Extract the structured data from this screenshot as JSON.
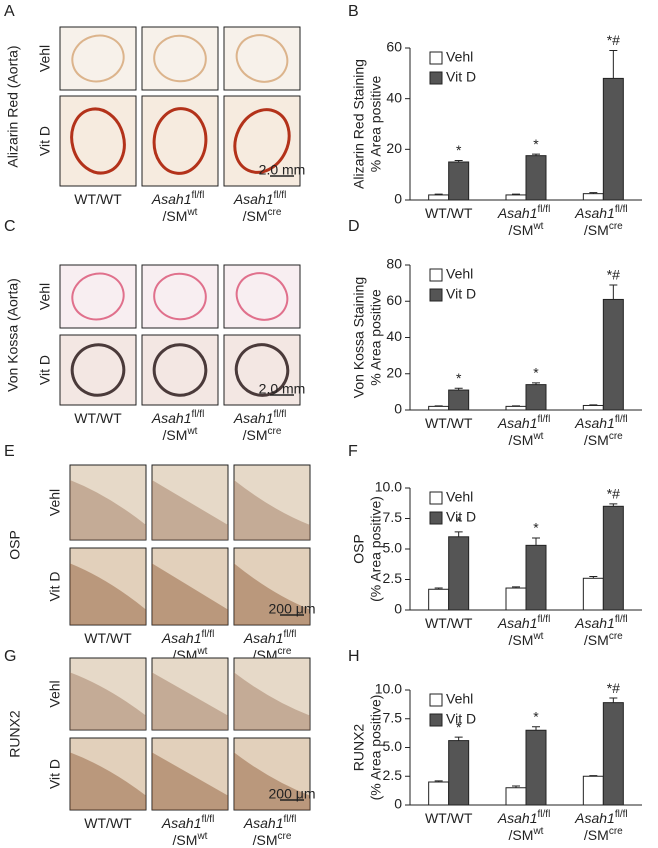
{
  "image_panels": [
    {
      "letter": "A",
      "stain": "Alizarin Red (Aorta)",
      "rows": [
        "Vehl",
        "Vit D"
      ],
      "scale_bar": "2.0 mm"
    },
    {
      "letter": "C",
      "stain": "Von Kossa (Aorta)",
      "rows": [
        "Vehl",
        "Vit D"
      ],
      "scale_bar": "2.0 mm"
    },
    {
      "letter": "E",
      "stain": "OSP",
      "rows": [
        "Vehl",
        "Vit D"
      ],
      "scale_bar": "200 μm"
    },
    {
      "letter": "G",
      "stain": "RUNX2",
      "rows": [
        "Vehl",
        "Vit D"
      ],
      "scale_bar": "200 μm"
    }
  ],
  "chart_data": [
    {
      "type": "bar",
      "panel": "B",
      "ylabel": [
        "Alizarin Red Staining",
        "% Area positive"
      ],
      "categories": [
        "WT/WT",
        "Asah1fl/fl /SMwt",
        "Asah1fl/fl /SMcre"
      ],
      "series": [
        {
          "name": "Vehl",
          "color": "#ffffff",
          "values": [
            2,
            2,
            2.5
          ],
          "errors": [
            0.3,
            0.3,
            0.4
          ]
        },
        {
          "name": "Vit D",
          "color": "#555555",
          "values": [
            15,
            17.5,
            48
          ],
          "errors": [
            0.6,
            0.6,
            11
          ]
        }
      ],
      "annotations": [
        "*",
        "*",
        "*#"
      ],
      "ylim": [
        0,
        60
      ],
      "yticks": [
        0,
        20,
        40,
        60
      ]
    },
    {
      "type": "bar",
      "panel": "D",
      "ylabel": [
        "Von Kossa Staining",
        "% Area positive"
      ],
      "categories": [
        "WT/WT",
        "Asah1fl/fl /SMwt",
        "Asah1fl/fl /SMcre"
      ],
      "series": [
        {
          "name": "Vehl",
          "color": "#ffffff",
          "values": [
            2,
            2,
            2.5
          ],
          "errors": [
            0.3,
            0.3,
            0.3
          ]
        },
        {
          "name": "Vit D",
          "color": "#555555",
          "values": [
            11,
            14,
            61
          ],
          "errors": [
            1,
            1,
            8
          ]
        }
      ],
      "annotations": [
        "*",
        "*",
        "*#"
      ],
      "ylim": [
        0,
        80
      ],
      "yticks": [
        0,
        20,
        40,
        60,
        80
      ]
    },
    {
      "type": "bar",
      "panel": "F",
      "ylabel": [
        "OSP",
        "(% Area positive)"
      ],
      "categories": [
        "WT/WT",
        "Asah1fl/fl /SMwt",
        "Asah1fl/fl /SMcre"
      ],
      "series": [
        {
          "name": "Vehl",
          "color": "#ffffff",
          "values": [
            1.7,
            1.8,
            2.6
          ],
          "errors": [
            0.1,
            0.1,
            0.15
          ]
        },
        {
          "name": "Vit D",
          "color": "#555555",
          "values": [
            6.0,
            5.3,
            8.5
          ],
          "errors": [
            0.4,
            0.6,
            0.2
          ]
        }
      ],
      "annotations": [
        "*",
        "*",
        "*#"
      ],
      "ylim": [
        0,
        10
      ],
      "yticks": [
        0,
        2.5,
        {
          "value": 5,
          "label": "5.0"
        },
        7.5,
        {
          "value": 10,
          "label": "10.0"
        }
      ]
    },
    {
      "type": "bar",
      "panel": "H",
      "ylabel": [
        "RUNX2",
        "(% Area positive)"
      ],
      "categories": [
        "WT/WT",
        "Asah1fl/fl /SMwt",
        "Asah1fl/fl /SMcre"
      ],
      "series": [
        {
          "name": "Vehl",
          "color": "#ffffff",
          "values": [
            2.0,
            1.5,
            2.5
          ],
          "errors": [
            0.1,
            0.15,
            0.05
          ]
        },
        {
          "name": "Vit D",
          "color": "#555555",
          "values": [
            5.6,
            6.5,
            8.9
          ],
          "errors": [
            0.3,
            0.3,
            0.4
          ]
        }
      ],
      "annotations": [
        "*",
        "*",
        "*#"
      ],
      "ylim": [
        0,
        10
      ],
      "yticks": [
        0,
        2.5,
        {
          "value": 5,
          "label": "5.0"
        },
        7.5,
        {
          "value": 10,
          "label": "10.0"
        }
      ]
    }
  ]
}
